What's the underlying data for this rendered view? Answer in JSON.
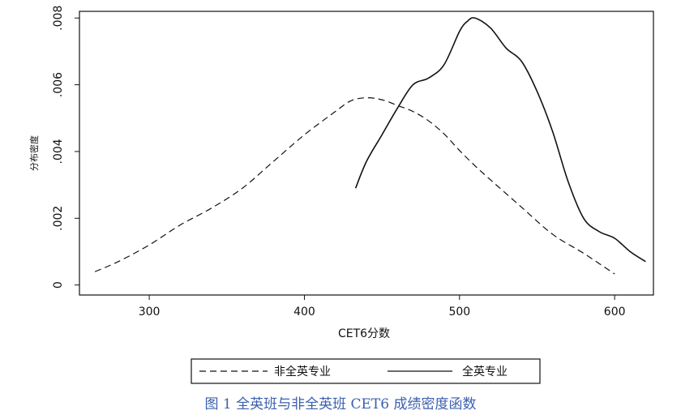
{
  "caption": "图 1 全英班与非全英班 CET6 成绩密度函数",
  "chart_data": {
    "type": "line",
    "title": "",
    "xlabel": "CET6分数",
    "ylabel": "分布密度",
    "xlim": [
      255,
      625
    ],
    "ylim": [
      -0.0003,
      0.0082
    ],
    "x_ticks": [
      300,
      400,
      500,
      600
    ],
    "x_tick_labels": [
      "300",
      "400",
      "500",
      "600"
    ],
    "y_ticks": [
      0,
      0.002,
      0.004,
      0.006,
      0.008
    ],
    "y_tick_labels": [
      "0",
      ".002",
      ".004",
      ".006",
      ".008"
    ],
    "grid": false,
    "legend": "bottom",
    "series": [
      {
        "name": "非全英专业",
        "style": "dashed",
        "color": "#111111",
        "x": [
          265,
          280,
          300,
          320,
          340,
          360,
          380,
          400,
          420,
          430,
          440,
          450,
          460,
          470,
          480,
          490,
          500,
          510,
          520,
          540,
          560,
          580,
          600
        ],
        "y": [
          0.0004,
          0.0007,
          0.0012,
          0.0018,
          0.0023,
          0.0029,
          0.0037,
          0.0045,
          0.0052,
          0.00552,
          0.00561,
          0.00555,
          0.00538,
          0.0052,
          0.00492,
          0.00453,
          0.00403,
          0.00357,
          0.00315,
          0.00233,
          0.00152,
          0.00095,
          0.00033
        ]
      },
      {
        "name": "全英专业",
        "style": "solid",
        "color": "#111111",
        "x": [
          433,
          440,
          450,
          460,
          470,
          480,
          490,
          500,
          505,
          510,
          520,
          530,
          540,
          550,
          560,
          570,
          580,
          590,
          600,
          610,
          620
        ],
        "y": [
          0.0029,
          0.0037,
          0.0045,
          0.0053,
          0.006,
          0.0062,
          0.0066,
          0.0076,
          0.0079,
          0.008,
          0.0077,
          0.0071,
          0.0067,
          0.0058,
          0.0046,
          0.0031,
          0.002,
          0.0016,
          0.0014,
          0.001,
          0.0007
        ]
      }
    ]
  }
}
